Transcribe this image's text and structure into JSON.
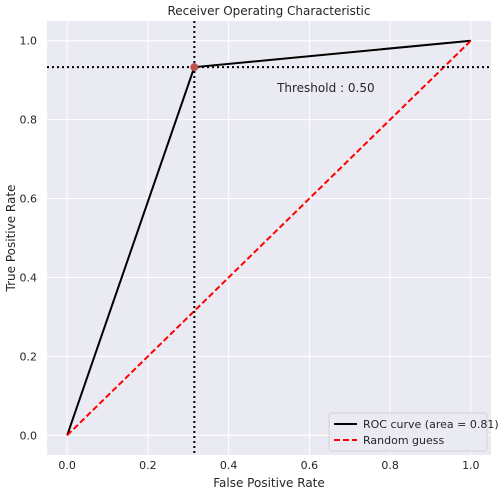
{
  "chart_data": {
    "type": "line",
    "title": "Receiver Operating Characteristic",
    "xlabel": "False Positive Rate",
    "ylabel": "True Positive Rate",
    "xlim": [
      -0.05,
      1.05
    ],
    "ylim": [
      -0.05,
      1.05
    ],
    "xticks": [
      "0.0",
      "0.2",
      "0.4",
      "0.6",
      "0.8",
      "1.0"
    ],
    "yticks": [
      "0.0",
      "0.2",
      "0.4",
      "0.6",
      "0.8",
      "1.0"
    ],
    "grid": true,
    "legend_position": "lower right",
    "series": [
      {
        "name": "ROC curve (area = 0.81)",
        "x": [
          0.0,
          0.315,
          1.0
        ],
        "y": [
          0.0,
          0.933,
          1.0
        ],
        "color": "#000000",
        "style": "solid"
      },
      {
        "name": "Random guess",
        "x": [
          0.0,
          1.0
        ],
        "y": [
          0.0,
          1.0
        ],
        "color": "#ff0000",
        "style": "dashed"
      }
    ],
    "threshold_point": {
      "x": 0.315,
      "y": 0.933,
      "color": "#c0504d"
    },
    "annotation": {
      "text": "Threshold : 0.50",
      "x": 0.52,
      "y": 0.88
    }
  }
}
